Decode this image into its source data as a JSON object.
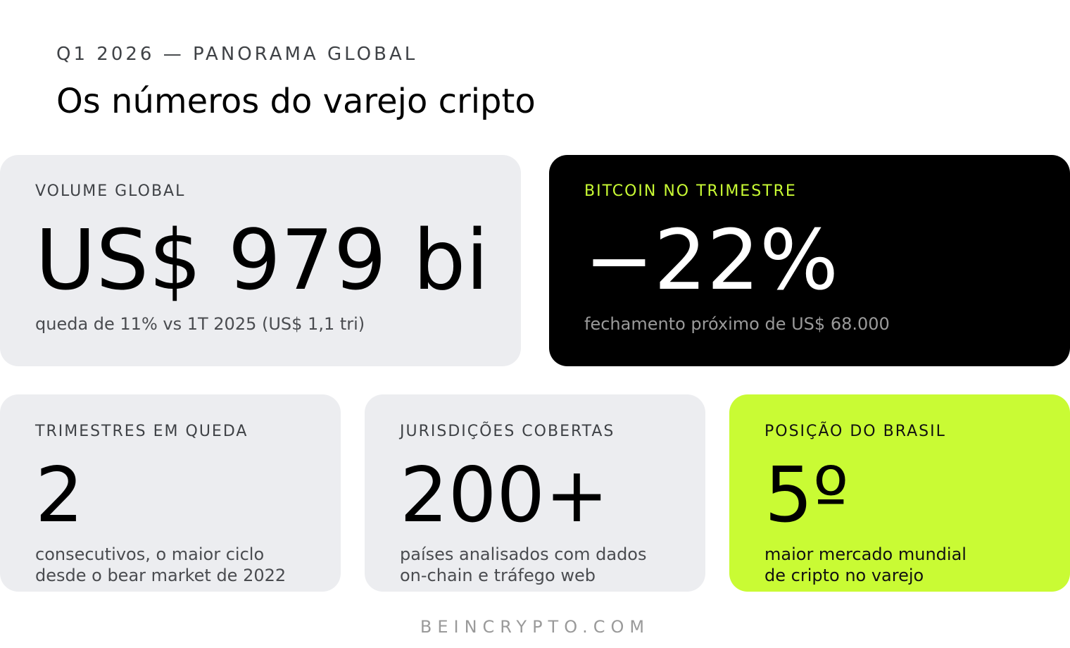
{
  "header": {
    "eyebrow": "Q1 2026 — PANORAMA GLOBAL",
    "title": "Os números do varejo cripto"
  },
  "cards": [
    {
      "label": "VOLUME GLOBAL",
      "value": "US$ 979 bi",
      "desc_lines": [
        "queda de 11% vs 1T 2025 (US$ 1,1 tri)"
      ]
    },
    {
      "label": "BITCOIN NO TRIMESTRE",
      "value": "−22%",
      "desc_lines": [
        "fechamento próximo de US$ 68.000"
      ]
    },
    {
      "label": "TRIMESTRES EM QUEDA",
      "value": "2",
      "desc_lines": [
        "consecutivos, o maior ciclo",
        "desde o bear market de 2022"
      ]
    },
    {
      "label": "JURISDIÇÕES COBERTAS",
      "value": "200+",
      "desc_lines": [
        "países analisados com dados",
        "on-chain e tráfego web"
      ]
    },
    {
      "label": "POSIÇÃO DO BRASIL",
      "value": "5º",
      "desc_lines": [
        "maior mercado mundial",
        "de cripto no varejo"
      ]
    }
  ],
  "footer": {
    "source": "BEINCRYPTO.COM"
  },
  "colors": {
    "card_light": "#ecedf0",
    "card_dark": "#000000",
    "accent_lime": "#c9fb34"
  }
}
